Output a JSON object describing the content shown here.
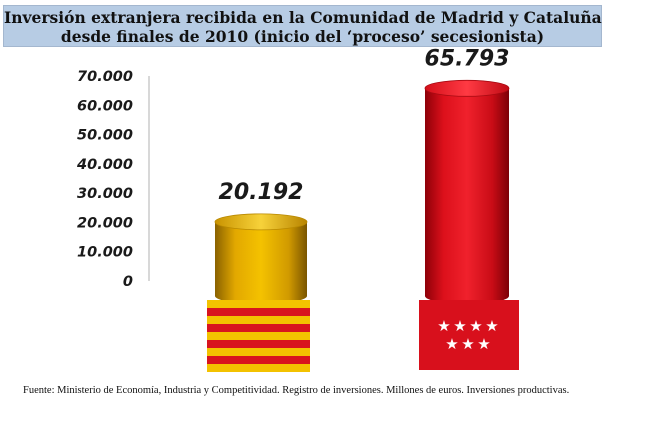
{
  "title": {
    "line1": "Inversión extranjera recibida en la Comunidad de Madrid y Cataluña",
    "line2": "desde finales de 2010 (inicio del ‘proceso’ secesionista)"
  },
  "chart_data": {
    "type": "bar",
    "categories": [
      "Cataluña",
      "Comunidad de Madrid"
    ],
    "values": [
      20192,
      65793
    ],
    "value_labels": [
      "20.192",
      "65.793"
    ],
    "ylim": [
      0,
      70000
    ],
    "yticks": [
      0,
      10000,
      20000,
      30000,
      40000,
      50000,
      60000,
      70000
    ],
    "ytick_labels": [
      "0",
      "10.000",
      "20.000",
      "30.000",
      "40.000",
      "50.000",
      "60.000",
      "70.000"
    ],
    "grid": false,
    "colors": [
      "#e7b100",
      "#e41420"
    ]
  },
  "source": "Fuente: Ministerio de Economía, Industria y Competitividad. Registro de inversiones. Millones de euros. Inversiones productivas."
}
